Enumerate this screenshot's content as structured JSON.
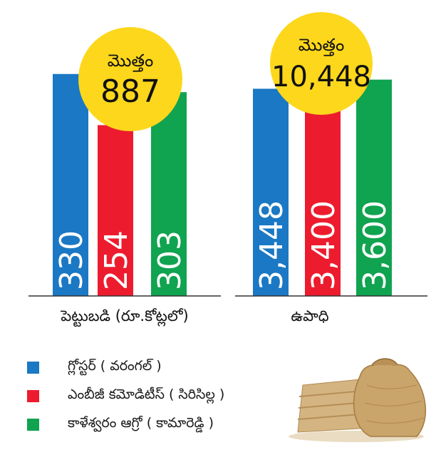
{
  "colors": {
    "blue": "#1a78c4",
    "red": "#ec1c2e",
    "green": "#10a350",
    "bubble": "#fdd71c",
    "axis": "#333333",
    "value_text": "#ffffff"
  },
  "chart_data": [
    {
      "type": "bar",
      "xlabel": "పెట్టుబడి (రూ.కోట్లలో)",
      "categories": [
        "గ్లోస్టర్ (వరంగల్)",
        "ఎంబీజీ కమోడిటీస్ (సిరిసిల్ల)",
        "కాళేశ్వరం ఆగ్రో (కామారెడ్డి)"
      ],
      "values": [
        330,
        254,
        303
      ],
      "value_labels": [
        "330",
        "254",
        "303"
      ],
      "total_label": "మొత్తం",
      "total_value": "887",
      "ylim": [
        0,
        440
      ]
    },
    {
      "type": "bar",
      "xlabel": "ఉపాధి",
      "categories": [
        "గ్లోస్టర్ (వరంగల్)",
        "ఎంబీజీ కమోడిటీస్ (సిరిసిల్ల)",
        "కాళేశ్వరం ఆగ్రో (కామారెడ్డి)"
      ],
      "values": [
        3448,
        3400,
        3600
      ],
      "value_labels": [
        "3,448",
        "3,400",
        "3,600"
      ],
      "total_label": "మొత్తం",
      "total_value": "10,448",
      "ylim": [
        0,
        4925
      ]
    }
  ],
  "legend": [
    {
      "label": "గ్లోస్టర్ ( వరంగల్ )",
      "color": "#1a78c4"
    },
    {
      "label": "ఎంబీజీ కమోడిటీస్ ( సిరిసిల్ల )",
      "color": "#ec1c2e"
    },
    {
      "label": "కాళేశ్వరం ఆగ్రో ( కామారెడ్డి )",
      "color": "#10a350"
    }
  ]
}
